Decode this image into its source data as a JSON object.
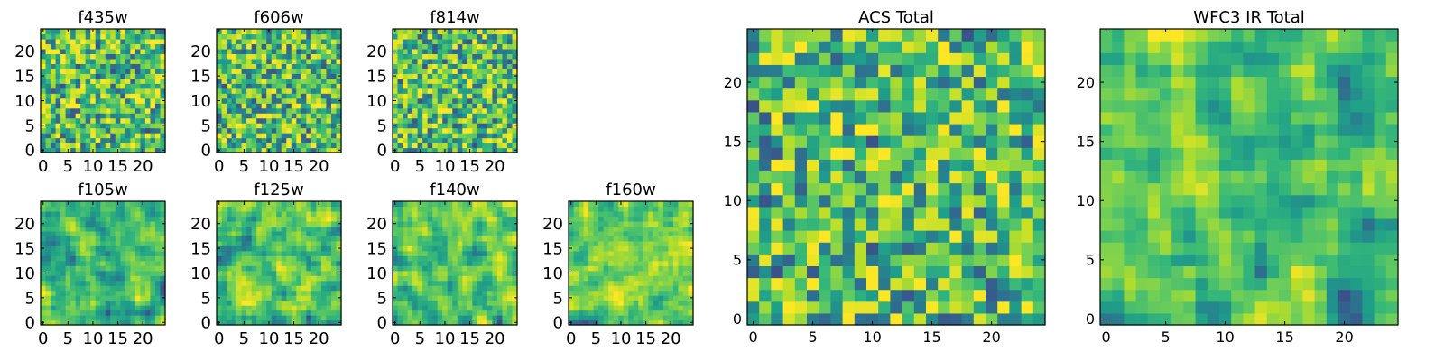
{
  "chart_data": [
    {
      "type": "heatmap",
      "title": "f435w",
      "xlim": [
        0,
        24
      ],
      "ylim": [
        0,
        24
      ],
      "xticks": [
        "0",
        "5",
        "10",
        "15",
        "20"
      ],
      "yticks": [
        "0",
        "5",
        "10",
        "15",
        "20"
      ],
      "grid": false,
      "colormap": "viridis"
    },
    {
      "type": "heatmap",
      "title": "f606w",
      "xlim": [
        0,
        24
      ],
      "ylim": [
        0,
        24
      ],
      "xticks": [
        "0",
        "5",
        "10",
        "15",
        "20"
      ],
      "yticks": [
        "0",
        "5",
        "10",
        "15",
        "20"
      ],
      "grid": false,
      "colormap": "viridis"
    },
    {
      "type": "heatmap",
      "title": "f814w",
      "xlim": [
        0,
        24
      ],
      "ylim": [
        0,
        24
      ],
      "xticks": [
        "0",
        "5",
        "10",
        "15",
        "20"
      ],
      "yticks": [
        "0",
        "5",
        "10",
        "15",
        "20"
      ],
      "grid": false,
      "colormap": "viridis"
    },
    {
      "type": "heatmap",
      "title": "f105w",
      "xlim": [
        0,
        24
      ],
      "ylim": [
        0,
        24
      ],
      "xticks": [
        "0",
        "5",
        "10",
        "15",
        "20"
      ],
      "yticks": [
        "0",
        "5",
        "10",
        "15",
        "20"
      ],
      "grid": false,
      "colormap": "viridis"
    },
    {
      "type": "heatmap",
      "title": "f125w",
      "xlim": [
        0,
        24
      ],
      "ylim": [
        0,
        24
      ],
      "xticks": [
        "0",
        "5",
        "10",
        "15",
        "20"
      ],
      "yticks": [
        "0",
        "5",
        "10",
        "15",
        "20"
      ],
      "grid": false,
      "colormap": "viridis"
    },
    {
      "type": "heatmap",
      "title": "f140w",
      "xlim": [
        0,
        24
      ],
      "ylim": [
        0,
        24
      ],
      "xticks": [
        "0",
        "5",
        "10",
        "15",
        "20"
      ],
      "yticks": [
        "0",
        "5",
        "10",
        "15",
        "20"
      ],
      "grid": false,
      "colormap": "viridis"
    },
    {
      "type": "heatmap",
      "title": "f160w",
      "xlim": [
        0,
        24
      ],
      "ylim": [
        0,
        24
      ],
      "xticks": [
        "0",
        "5",
        "10",
        "15",
        "20"
      ],
      "yticks": [
        "0",
        "5",
        "10",
        "15",
        "20"
      ],
      "grid": false,
      "colormap": "viridis"
    },
    {
      "type": "heatmap",
      "title": "ACS Total",
      "xlim": [
        0,
        24
      ],
      "ylim": [
        0,
        24
      ],
      "xticks": [
        "0",
        "5",
        "10",
        "15",
        "20"
      ],
      "yticks": [
        "0",
        "5",
        "10",
        "15",
        "20"
      ],
      "grid": false,
      "colormap": "viridis"
    },
    {
      "type": "heatmap",
      "title": "WFC3 IR Total",
      "xlim": [
        0,
        24
      ],
      "ylim": [
        0,
        24
      ],
      "xticks": [
        "0",
        "5",
        "10",
        "15",
        "20"
      ],
      "yticks": [
        "0",
        "5",
        "10",
        "15",
        "20"
      ],
      "grid": false,
      "colormap": "viridis"
    }
  ],
  "colors": {
    "viridis_low": "#440154",
    "viridis_mid": "#21918c",
    "viridis_high": "#fde725",
    "axis": "#000000"
  }
}
